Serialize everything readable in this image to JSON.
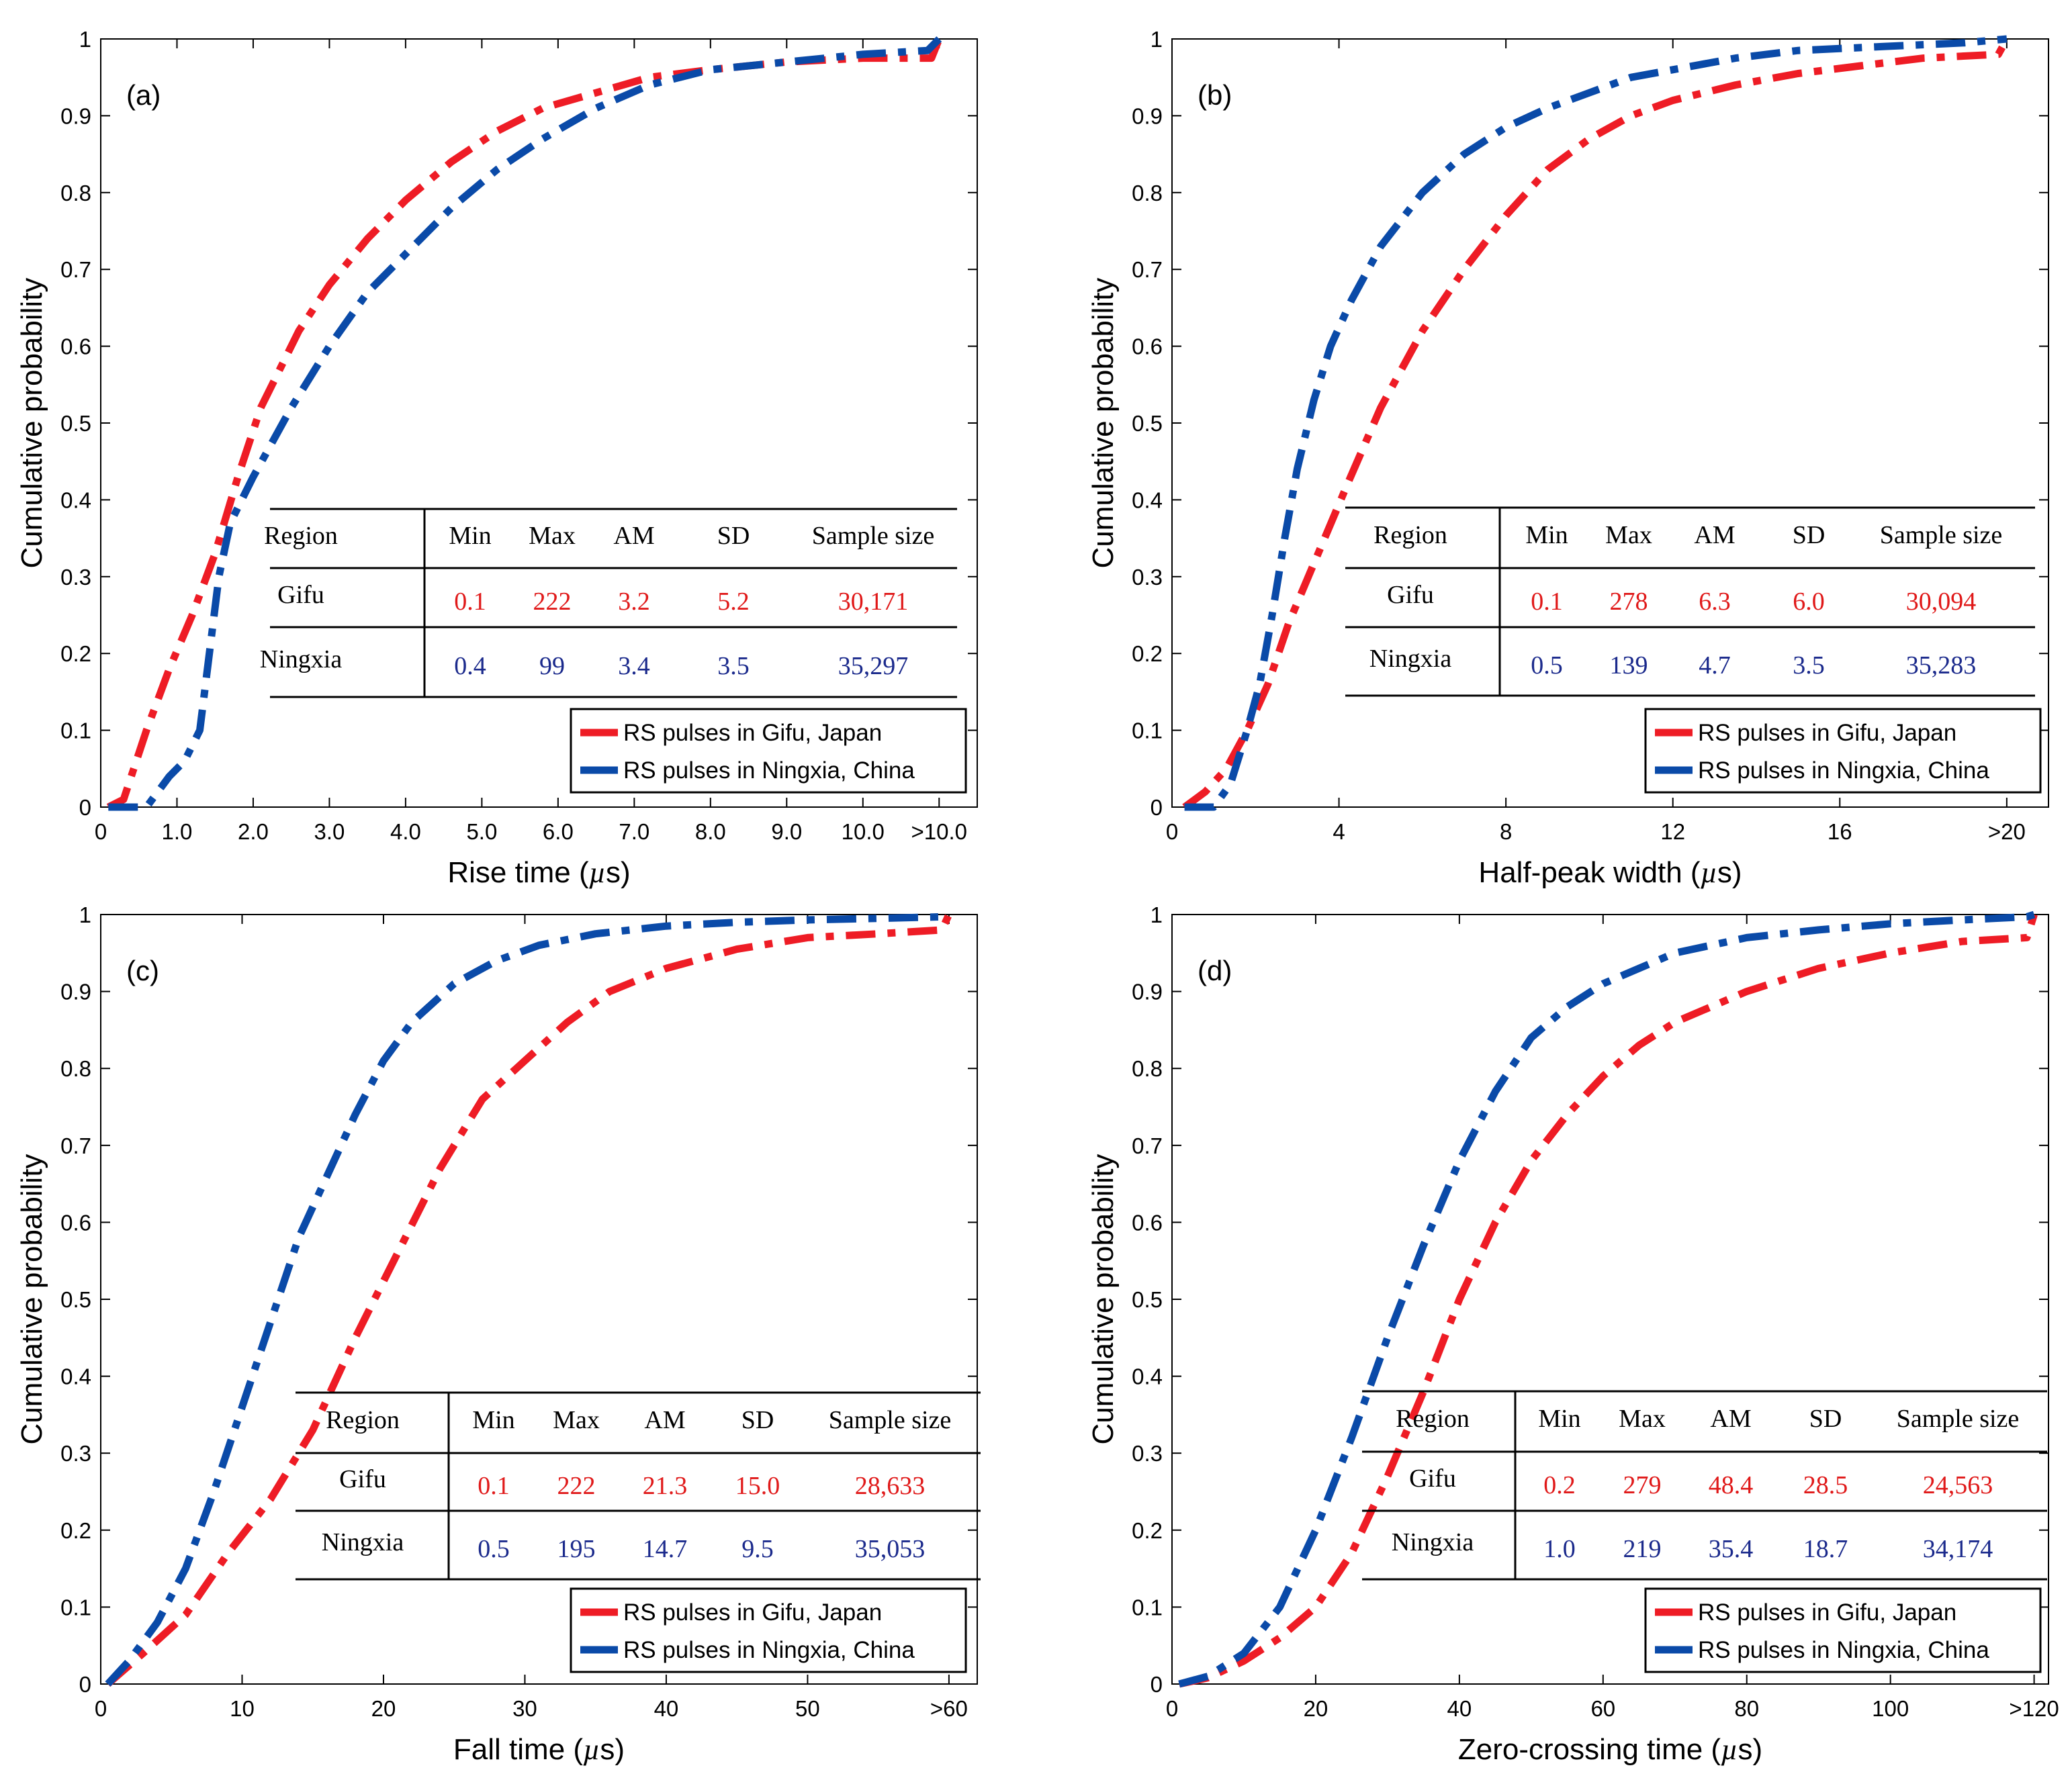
{
  "figure": {
    "ylabel": "Cumulative probability",
    "colors": {
      "gifu": "#ee1c25",
      "ningxia": "#0a4aa8",
      "gifu_text": "#e01919",
      "ningxia_text": "#1b2a8c",
      "axis": "#000000"
    }
  },
  "chart_data": [
    {
      "type": "line",
      "panel": "(a)",
      "xlabel": "Rise time (",
      "xlabel_mu": "µ",
      "xlabel_tail": "s)",
      "xlim": [
        0,
        11.5
      ],
      "ylim": [
        0,
        1
      ],
      "xticks": [
        0,
        1.0,
        2.0,
        3.0,
        4.0,
        5.0,
        6.0,
        7.0,
        8.0,
        9.0,
        10.0,
        11.0
      ],
      "xtick_labels": [
        "0",
        "1.0",
        "2.0",
        "3.0",
        "4.0",
        "5.0",
        "6.0",
        "7.0",
        "8.0",
        "9.0",
        "10.0",
        ">10.0"
      ],
      "yticks": [
        0,
        0.1,
        0.2,
        0.3,
        0.4,
        0.5,
        0.6,
        0.7,
        0.8,
        0.9,
        1
      ],
      "ytick_labels": [
        "0",
        "0.1",
        "0.2",
        "0.3",
        "0.4",
        "0.5",
        "0.6",
        "0.7",
        "0.8",
        "0.9",
        "1"
      ],
      "legend": {
        "position": "bottom-right",
        "entries": [
          "RS pulses in Gifu, Japan",
          "RS pulses in Ningxia, China"
        ]
      },
      "series": [
        {
          "name": "RS pulses in Gifu, Japan",
          "color": "#ee1c25",
          "points": [
            [
              0.1,
              0
            ],
            [
              0.3,
              0.01
            ],
            [
              0.6,
              0.1
            ],
            [
              0.9,
              0.18
            ],
            [
              1.2,
              0.25
            ],
            [
              1.5,
              0.33
            ],
            [
              1.8,
              0.43
            ],
            [
              2.1,
              0.52
            ],
            [
              2.6,
              0.62
            ],
            [
              3.0,
              0.68
            ],
            [
              3.5,
              0.74
            ],
            [
              4.0,
              0.79
            ],
            [
              4.6,
              0.84
            ],
            [
              5.2,
              0.88
            ],
            [
              5.8,
              0.91
            ],
            [
              6.5,
              0.93
            ],
            [
              7.2,
              0.95
            ],
            [
              8.0,
              0.96
            ],
            [
              9.0,
              0.97
            ],
            [
              10.0,
              0.975
            ],
            [
              10.9,
              0.975
            ],
            [
              11.0,
              1.0
            ]
          ]
        },
        {
          "name": "RS pulses in Ningxia, China",
          "color": "#0a4aa8",
          "points": [
            [
              0.1,
              0
            ],
            [
              0.6,
              0
            ],
            [
              0.9,
              0.04
            ],
            [
              1.1,
              0.06
            ],
            [
              1.3,
              0.1
            ],
            [
              1.55,
              0.3
            ],
            [
              1.7,
              0.37
            ],
            [
              2.0,
              0.43
            ],
            [
              2.5,
              0.52
            ],
            [
              3.0,
              0.6
            ],
            [
              3.5,
              0.67
            ],
            [
              4.0,
              0.72
            ],
            [
              4.6,
              0.78
            ],
            [
              5.2,
              0.83
            ],
            [
              5.8,
              0.87
            ],
            [
              6.5,
              0.91
            ],
            [
              7.2,
              0.94
            ],
            [
              8.0,
              0.96
            ],
            [
              9.0,
              0.97
            ],
            [
              10.0,
              0.98
            ],
            [
              10.85,
              0.985
            ],
            [
              11.0,
              1.0
            ]
          ]
        }
      ],
      "stats_table": {
        "headers": [
          "Region",
          "Min",
          "Max",
          "AM",
          "SD",
          "Sample size"
        ],
        "rows": [
          {
            "region": "Gifu",
            "min": "0.1",
            "max": "222",
            "am": "3.2",
            "sd": "5.2",
            "n": "30,171"
          },
          {
            "region": "Ningxia",
            "min": "0.4",
            "max": "99",
            "am": "3.4",
            "sd": "3.5",
            "n": "35,297"
          }
        ]
      }
    },
    {
      "type": "line",
      "panel": "(b)",
      "xlabel": "Half-peak width (",
      "xlabel_mu": "µ",
      "xlabel_tail": "s)",
      "xlim": [
        0,
        21
      ],
      "ylim": [
        0,
        1
      ],
      "xticks": [
        0,
        4,
        8,
        12,
        16,
        20
      ],
      "xtick_labels": [
        "0",
        "4",
        "8",
        "12",
        "16",
        ">20"
      ],
      "yticks": [
        0,
        0.1,
        0.2,
        0.3,
        0.4,
        0.5,
        0.6,
        0.7,
        0.8,
        0.9,
        1
      ],
      "ytick_labels": [
        "0",
        "0.1",
        "0.2",
        "0.3",
        "0.4",
        "0.5",
        "0.6",
        "0.7",
        "0.8",
        "0.9",
        "1"
      ],
      "legend": {
        "position": "bottom-right",
        "entries": [
          "RS pulses in Gifu, Japan",
          "RS pulses in Ningxia, China"
        ]
      },
      "series": [
        {
          "name": "RS pulses in Gifu, Japan",
          "color": "#ee1c25",
          "points": [
            [
              0.3,
              0
            ],
            [
              0.8,
              0.02
            ],
            [
              1.3,
              0.05
            ],
            [
              1.8,
              0.1
            ],
            [
              2.3,
              0.16
            ],
            [
              2.8,
              0.24
            ],
            [
              3.5,
              0.33
            ],
            [
              4.2,
              0.42
            ],
            [
              5.0,
              0.52
            ],
            [
              6.0,
              0.62
            ],
            [
              7.0,
              0.7
            ],
            [
              8.0,
              0.77
            ],
            [
              9.0,
              0.83
            ],
            [
              10.0,
              0.87
            ],
            [
              11.0,
              0.9
            ],
            [
              12.0,
              0.92
            ],
            [
              13.5,
              0.94
            ],
            [
              15.0,
              0.955
            ],
            [
              16.5,
              0.965
            ],
            [
              18.0,
              0.975
            ],
            [
              19.8,
              0.98
            ],
            [
              20.0,
              1.0
            ]
          ]
        },
        {
          "name": "RS pulses in Ningxia, China",
          "color": "#0a4aa8",
          "points": [
            [
              0.3,
              0
            ],
            [
              1.0,
              0
            ],
            [
              1.4,
              0.03
            ],
            [
              1.8,
              0.1
            ],
            [
              2.1,
              0.16
            ],
            [
              2.4,
              0.25
            ],
            [
              2.7,
              0.35
            ],
            [
              3.0,
              0.44
            ],
            [
              3.4,
              0.53
            ],
            [
              3.8,
              0.6
            ],
            [
              4.3,
              0.66
            ],
            [
              5.0,
              0.73
            ],
            [
              6.0,
              0.8
            ],
            [
              7.0,
              0.85
            ],
            [
              8.0,
              0.885
            ],
            [
              9.0,
              0.91
            ],
            [
              10.0,
              0.93
            ],
            [
              11.0,
              0.95
            ],
            [
              12.0,
              0.96
            ],
            [
              13.5,
              0.975
            ],
            [
              15.0,
              0.985
            ],
            [
              17.0,
              0.99
            ],
            [
              19.0,
              0.995
            ],
            [
              20.0,
              1.0
            ]
          ]
        }
      ],
      "stats_table": {
        "headers": [
          "Region",
          "Min",
          "Max",
          "AM",
          "SD",
          "Sample size"
        ],
        "rows": [
          {
            "region": "Gifu",
            "min": "0.1",
            "max": "278",
            "am": "6.3",
            "sd": "6.0",
            "n": "30,094"
          },
          {
            "region": "Ningxia",
            "min": "0.5",
            "max": "139",
            "am": "4.7",
            "sd": "3.5",
            "n": "35,283"
          }
        ]
      }
    },
    {
      "type": "line",
      "panel": "(c)",
      "xlabel": "Fall time (",
      "xlabel_mu": "µ",
      "xlabel_tail": "s)",
      "xlim": [
        0,
        62
      ],
      "ylim": [
        0,
        1
      ],
      "xticks": [
        0,
        10,
        20,
        30,
        40,
        50,
        60
      ],
      "xtick_labels": [
        "0",
        "10",
        "20",
        "30",
        "40",
        "50",
        ">60"
      ],
      "yticks": [
        0,
        0.1,
        0.2,
        0.3,
        0.4,
        0.5,
        0.6,
        0.7,
        0.8,
        0.9,
        1
      ],
      "ytick_labels": [
        "0",
        "0.1",
        "0.2",
        "0.3",
        "0.4",
        "0.5",
        "0.6",
        "0.7",
        "0.8",
        "0.9",
        "1"
      ],
      "legend": {
        "position": "bottom-right",
        "entries": [
          "RS pulses in Gifu, Japan",
          "RS pulses in Ningxia, China"
        ]
      },
      "series": [
        {
          "name": "RS pulses in Gifu, Japan",
          "color": "#ee1c25",
          "points": [
            [
              0.5,
              0
            ],
            [
              3,
              0.04
            ],
            [
              6,
              0.09
            ],
            [
              9,
              0.17
            ],
            [
              12,
              0.24
            ],
            [
              15,
              0.33
            ],
            [
              18,
              0.45
            ],
            [
              21,
              0.56
            ],
            [
              24,
              0.67
            ],
            [
              27,
              0.76
            ],
            [
              30,
              0.81
            ],
            [
              33,
              0.86
            ],
            [
              36,
              0.9
            ],
            [
              40,
              0.93
            ],
            [
              45,
              0.955
            ],
            [
              50,
              0.97
            ],
            [
              55,
              0.975
            ],
            [
              59.5,
              0.98
            ],
            [
              60,
              1.0
            ]
          ]
        },
        {
          "name": "RS pulses in Ningxia, China",
          "color": "#0a4aa8",
          "points": [
            [
              0.5,
              0
            ],
            [
              2,
              0.03
            ],
            [
              4,
              0.08
            ],
            [
              6,
              0.15
            ],
            [
              8,
              0.25
            ],
            [
              10,
              0.36
            ],
            [
              12,
              0.47
            ],
            [
              14,
              0.58
            ],
            [
              16,
              0.66
            ],
            [
              18,
              0.74
            ],
            [
              20,
              0.81
            ],
            [
              22,
              0.86
            ],
            [
              25,
              0.91
            ],
            [
              28,
              0.94
            ],
            [
              31,
              0.96
            ],
            [
              35,
              0.975
            ],
            [
              40,
              0.985
            ],
            [
              45,
              0.99
            ],
            [
              50,
              0.993
            ],
            [
              55,
              0.995
            ],
            [
              59.5,
              0.997
            ],
            [
              60,
              1.0
            ]
          ]
        }
      ],
      "stats_table": {
        "headers": [
          "Region",
          "Min",
          "Max",
          "AM",
          "SD",
          "Sample size"
        ],
        "rows": [
          {
            "region": "Gifu",
            "min": "0.1",
            "max": "222",
            "am": "21.3",
            "sd": "15.0",
            "n": "28,633"
          },
          {
            "region": "Ningxia",
            "min": "0.5",
            "max": "195",
            "am": "14.7",
            "sd": "9.5",
            "n": "35,053"
          }
        ]
      }
    },
    {
      "type": "line",
      "panel": "(d)",
      "xlabel": "Zero-crossing time (",
      "xlabel_mu": "µ",
      "xlabel_tail": "s)",
      "xlim": [
        0,
        122
      ],
      "ylim": [
        0,
        1
      ],
      "xticks": [
        0,
        20,
        40,
        60,
        80,
        100,
        120
      ],
      "xtick_labels": [
        "0",
        "20",
        "40",
        "60",
        "80",
        "100",
        ">120"
      ],
      "yticks": [
        0,
        0.1,
        0.2,
        0.3,
        0.4,
        0.5,
        0.6,
        0.7,
        0.8,
        0.9,
        1
      ],
      "ytick_labels": [
        "0",
        "0.1",
        "0.2",
        "0.3",
        "0.4",
        "0.5",
        "0.6",
        "0.7",
        "0.8",
        "0.9",
        "1"
      ],
      "legend": {
        "position": "bottom-right",
        "entries": [
          "RS pulses in Gifu, Japan",
          "RS pulses in Ningxia, China"
        ]
      },
      "series": [
        {
          "name": "RS pulses in Gifu, Japan",
          "color": "#ee1c25",
          "points": [
            [
              1,
              0
            ],
            [
              5,
              0.008
            ],
            [
              10,
              0.03
            ],
            [
              15,
              0.06
            ],
            [
              20,
              0.1
            ],
            [
              25,
              0.17
            ],
            [
              30,
              0.27
            ],
            [
              35,
              0.38
            ],
            [
              40,
              0.5
            ],
            [
              45,
              0.6
            ],
            [
              50,
              0.68
            ],
            [
              55,
              0.74
            ],
            [
              60,
              0.79
            ],
            [
              65,
              0.83
            ],
            [
              70,
              0.86
            ],
            [
              80,
              0.9
            ],
            [
              90,
              0.93
            ],
            [
              100,
              0.95
            ],
            [
              110,
              0.965
            ],
            [
              119,
              0.97
            ],
            [
              120,
              1.0
            ]
          ]
        },
        {
          "name": "RS pulses in Ningxia, China",
          "color": "#0a4aa8",
          "points": [
            [
              1,
              0
            ],
            [
              5,
              0.01
            ],
            [
              10,
              0.04
            ],
            [
              15,
              0.1
            ],
            [
              20,
              0.2
            ],
            [
              25,
              0.32
            ],
            [
              30,
              0.45
            ],
            [
              35,
              0.57
            ],
            [
              40,
              0.68
            ],
            [
              45,
              0.77
            ],
            [
              50,
              0.84
            ],
            [
              55,
              0.88
            ],
            [
              60,
              0.91
            ],
            [
              65,
              0.93
            ],
            [
              70,
              0.95
            ],
            [
              80,
              0.97
            ],
            [
              90,
              0.98
            ],
            [
              100,
              0.988
            ],
            [
              110,
              0.993
            ],
            [
              119,
              0.997
            ],
            [
              120,
              1.0
            ]
          ]
        }
      ],
      "stats_table": {
        "headers": [
          "Region",
          "Min",
          "Max",
          "AM",
          "SD",
          "Sample size"
        ],
        "rows": [
          {
            "region": "Gifu",
            "min": "0.2",
            "max": "279",
            "am": "48.4",
            "sd": "28.5",
            "n": "24,563"
          },
          {
            "region": "Ningxia",
            "min": "1.0",
            "max": "219",
            "am": "35.4",
            "sd": "18.7",
            "n": "34,174"
          }
        ]
      }
    }
  ]
}
